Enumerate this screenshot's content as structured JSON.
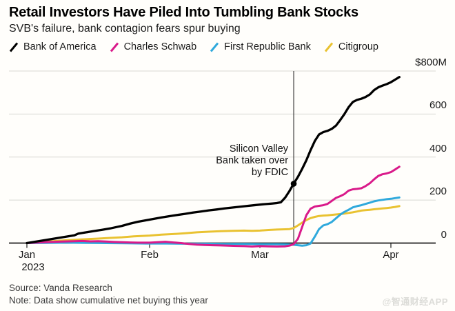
{
  "header": {
    "title": "Retail Investors Have Piled Into Tumbling Bank Stocks",
    "subtitle": "SVB's failure, bank contagion fears spur buying"
  },
  "legend": [
    {
      "label": "Bank of America",
      "color": "#000000"
    },
    {
      "label": "Charles Schwab",
      "color": "#d91a8a"
    },
    {
      "label": "First Republic Bank",
      "color": "#2fa9dc"
    },
    {
      "label": "Citigroup",
      "color": "#e9c231"
    }
  ],
  "chart_data": {
    "type": "line",
    "title": "Retail Investors Have Piled Into Tumbling Bank Stocks",
    "subtitle": "SVB's failure, bank contagion fears spur buying",
    "unit": "USD millions, cumulative net buying",
    "x_axis": {
      "ticks": [
        "Jan",
        "Feb",
        "Mar",
        "Apr"
      ],
      "year_label": "2023",
      "tick_days": [
        0,
        31,
        59,
        90
      ]
    },
    "y_axis": {
      "ticks": [
        0,
        200,
        400,
        600,
        800
      ],
      "top_label": "$800M",
      "ylim": [
        -25,
        800
      ],
      "grid": true,
      "labels_position": "right"
    },
    "annotation": {
      "text_lines": [
        "Silicon Valley",
        "Bank taken over",
        "by FDIC"
      ],
      "day": 67,
      "marker_series": "Bank of America",
      "marker_value": 276
    },
    "series": [
      {
        "name": "Bank of America",
        "color": "#000000",
        "points": [
          [
            0,
            0
          ],
          [
            2,
            6
          ],
          [
            4,
            12
          ],
          [
            6,
            18
          ],
          [
            8,
            24
          ],
          [
            10,
            30
          ],
          [
            12,
            36
          ],
          [
            13,
            44
          ],
          [
            15,
            50
          ],
          [
            17,
            56
          ],
          [
            19,
            62
          ],
          [
            21,
            68
          ],
          [
            23,
            76
          ],
          [
            24,
            80
          ],
          [
            26,
            90
          ],
          [
            28,
            99
          ],
          [
            31,
            109
          ],
          [
            34,
            119
          ],
          [
            37,
            128
          ],
          [
            40,
            136
          ],
          [
            42,
            142
          ],
          [
            44,
            147
          ],
          [
            46,
            152
          ],
          [
            48,
            156
          ],
          [
            50,
            161
          ],
          [
            53,
            167
          ],
          [
            56,
            173
          ],
          [
            58,
            177
          ],
          [
            60,
            181
          ],
          [
            62,
            184
          ],
          [
            63,
            186
          ],
          [
            64,
            190
          ],
          [
            65,
            212
          ],
          [
            66,
            242
          ],
          [
            67,
            276
          ],
          [
            68,
            308
          ],
          [
            69,
            345
          ],
          [
            70,
            385
          ],
          [
            71,
            432
          ],
          [
            72,
            475
          ],
          [
            73,
            505
          ],
          [
            74,
            516
          ],
          [
            75,
            522
          ],
          [
            76,
            531
          ],
          [
            77,
            546
          ],
          [
            78,
            572
          ],
          [
            79,
            600
          ],
          [
            80,
            632
          ],
          [
            81,
            656
          ],
          [
            82,
            666
          ],
          [
            83,
            671
          ],
          [
            84,
            679
          ],
          [
            85,
            691
          ],
          [
            86,
            711
          ],
          [
            87,
            724
          ],
          [
            88,
            732
          ],
          [
            89,
            739
          ],
          [
            90,
            748
          ],
          [
            91,
            760
          ],
          [
            92,
            772
          ]
        ]
      },
      {
        "name": "Charles Schwab",
        "color": "#d91a8a",
        "points": [
          [
            0,
            0
          ],
          [
            3,
            3
          ],
          [
            6,
            5
          ],
          [
            9,
            7
          ],
          [
            12,
            9
          ],
          [
            14,
            10
          ],
          [
            16,
            8
          ],
          [
            18,
            9
          ],
          [
            20,
            7
          ],
          [
            22,
            5
          ],
          [
            24,
            4
          ],
          [
            26,
            3
          ],
          [
            28,
            2
          ],
          [
            31,
            2
          ],
          [
            33,
            4
          ],
          [
            35,
            6
          ],
          [
            37,
            3
          ],
          [
            39,
            0
          ],
          [
            41,
            -4
          ],
          [
            43,
            -7
          ],
          [
            45,
            -9
          ],
          [
            47,
            -10
          ],
          [
            49,
            -11
          ],
          [
            51,
            -12
          ],
          [
            53,
            -13
          ],
          [
            55,
            -14
          ],
          [
            57,
            -16
          ],
          [
            59,
            -14
          ],
          [
            61,
            -15
          ],
          [
            63,
            -16
          ],
          [
            65,
            -15
          ],
          [
            66,
            -12
          ],
          [
            67,
            -5
          ],
          [
            68,
            20
          ],
          [
            69,
            75
          ],
          [
            70,
            130
          ],
          [
            71,
            160
          ],
          [
            72,
            170
          ],
          [
            73,
            173
          ],
          [
            74,
            176
          ],
          [
            75,
            182
          ],
          [
            76,
            196
          ],
          [
            77,
            210
          ],
          [
            78,
            218
          ],
          [
            79,
            228
          ],
          [
            80,
            244
          ],
          [
            81,
            250
          ],
          [
            82,
            252
          ],
          [
            83,
            255
          ],
          [
            84,
            265
          ],
          [
            85,
            278
          ],
          [
            86,
            296
          ],
          [
            87,
            312
          ],
          [
            88,
            320
          ],
          [
            89,
            324
          ],
          [
            90,
            330
          ],
          [
            91,
            342
          ],
          [
            92,
            355
          ]
        ]
      },
      {
        "name": "First Republic Bank",
        "color": "#2fa9dc",
        "points": [
          [
            0,
            0
          ],
          [
            5,
            1
          ],
          [
            10,
            2
          ],
          [
            15,
            1
          ],
          [
            20,
            0
          ],
          [
            25,
            -1
          ],
          [
            30,
            -2
          ],
          [
            35,
            -2
          ],
          [
            40,
            -3
          ],
          [
            45,
            -3
          ],
          [
            50,
            -4
          ],
          [
            55,
            -4
          ],
          [
            60,
            -5
          ],
          [
            63,
            -5
          ],
          [
            65,
            -6
          ],
          [
            67,
            -8
          ],
          [
            68,
            -10
          ],
          [
            69,
            -12
          ],
          [
            70,
            -10
          ],
          [
            71,
            -2
          ],
          [
            72,
            30
          ],
          [
            73,
            65
          ],
          [
            74,
            82
          ],
          [
            75,
            88
          ],
          [
            76,
            98
          ],
          [
            77,
            115
          ],
          [
            78,
            132
          ],
          [
            79,
            145
          ],
          [
            80,
            155
          ],
          [
            81,
            166
          ],
          [
            82,
            172
          ],
          [
            83,
            176
          ],
          [
            84,
            182
          ],
          [
            85,
            188
          ],
          [
            86,
            194
          ],
          [
            87,
            198
          ],
          [
            88,
            201
          ],
          [
            89,
            204
          ],
          [
            90,
            206
          ],
          [
            91,
            209
          ],
          [
            92,
            212
          ]
        ]
      },
      {
        "name": "Citigroup",
        "color": "#e9c231",
        "points": [
          [
            0,
            0
          ],
          [
            3,
            4
          ],
          [
            6,
            8
          ],
          [
            9,
            12
          ],
          [
            12,
            15
          ],
          [
            15,
            18
          ],
          [
            18,
            21
          ],
          [
            21,
            24
          ],
          [
            24,
            27
          ],
          [
            27,
            31
          ],
          [
            31,
            35
          ],
          [
            34,
            39
          ],
          [
            37,
            42
          ],
          [
            40,
            46
          ],
          [
            43,
            50
          ],
          [
            46,
            53
          ],
          [
            49,
            55
          ],
          [
            52,
            57
          ],
          [
            55,
            58
          ],
          [
            57,
            57
          ],
          [
            59,
            58
          ],
          [
            61,
            61
          ],
          [
            63,
            63
          ],
          [
            65,
            64
          ],
          [
            66,
            65
          ],
          [
            67,
            70
          ],
          [
            68,
            82
          ],
          [
            69,
            95
          ],
          [
            70,
            107
          ],
          [
            71,
            116
          ],
          [
            72,
            122
          ],
          [
            73,
            126
          ],
          [
            74,
            128
          ],
          [
            75,
            129
          ],
          [
            76,
            131
          ],
          [
            77,
            133
          ],
          [
            78,
            135
          ],
          [
            79,
            137
          ],
          [
            80,
            140
          ],
          [
            81,
            143
          ],
          [
            82,
            147
          ],
          [
            83,
            151
          ],
          [
            84,
            153
          ],
          [
            85,
            155
          ],
          [
            86,
            157
          ],
          [
            87,
            159
          ],
          [
            88,
            161
          ],
          [
            89,
            163
          ],
          [
            90,
            165
          ],
          [
            91,
            168
          ],
          [
            92,
            172
          ]
        ]
      }
    ]
  },
  "footer": {
    "source": "Source: Vanda Research",
    "note": "Note: Data show cumulative net buying this year"
  },
  "watermark": "@智通财经APP",
  "colors": {
    "grid": "#d8d8d3",
    "axis": "#1a1a1a",
    "background": "#fffefb"
  }
}
